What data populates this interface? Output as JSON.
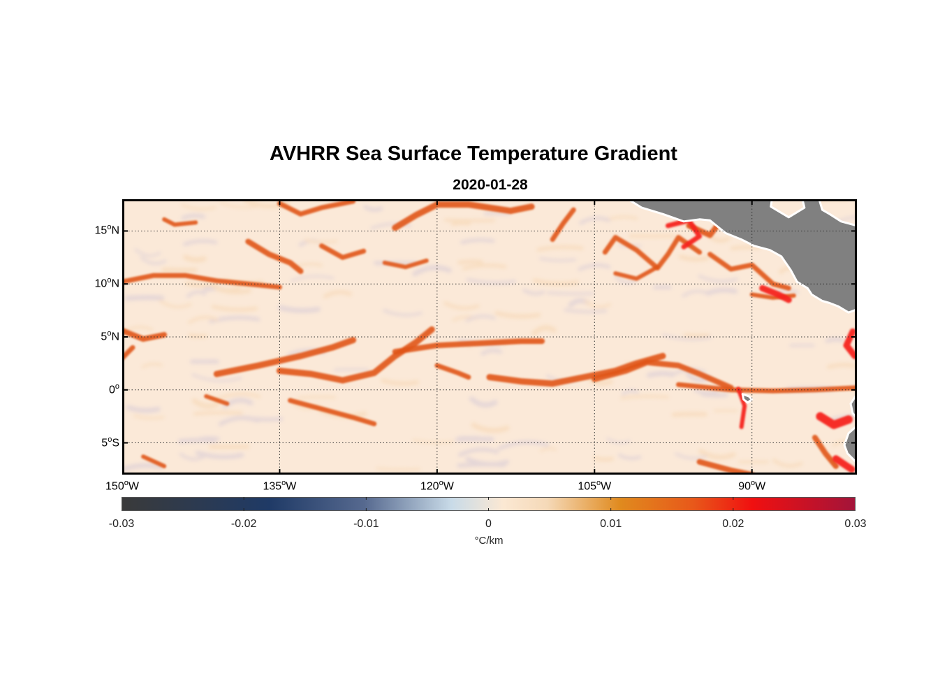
{
  "figure": {
    "title": "AVHRR Sea Surface Temperature Gradient",
    "subtitle": "2020-01-28"
  },
  "map": {
    "lon_range": [
      -150,
      -80
    ],
    "lat_range": [
      -8,
      18
    ],
    "land_color": "#808080",
    "grid_style": "dotted",
    "lat_ticks": [
      {
        "value": 15,
        "label": "15",
        "hemi": "N"
      },
      {
        "value": 10,
        "label": "10",
        "hemi": "N"
      },
      {
        "value": 5,
        "label": "5",
        "hemi": "N"
      },
      {
        "value": 0,
        "label": "0",
        "hemi": ""
      },
      {
        "value": -5,
        "label": "5",
        "hemi": "S"
      }
    ],
    "lon_ticks": [
      {
        "value": -150,
        "label": "150",
        "hemi": "W"
      },
      {
        "value": -135,
        "label": "135",
        "hemi": "W"
      },
      {
        "value": -120,
        "label": "120",
        "hemi": "W"
      },
      {
        "value": -105,
        "label": "105",
        "hemi": "W"
      },
      {
        "value": -90,
        "label": "90",
        "hemi": "W"
      }
    ],
    "degree_symbol": "o"
  },
  "colorbar": {
    "range": [
      -0.03,
      0.03
    ],
    "ticks": [
      "-0.03",
      "-0.02",
      "-0.01",
      "0",
      "0.01",
      "0.02",
      "0.03"
    ],
    "unit": "°C/km",
    "colors": {
      "min": "#3a3a3a",
      "low": "#1f3a66",
      "mid_low": "#c9dbe8",
      "zero": "#fbe8d3",
      "mid_high": "#e08a1e",
      "high": "#f01010",
      "max": "#a3143a"
    }
  },
  "features": {
    "ocean_background": "#fbe9d8",
    "front_color": "#e0541a",
    "strong_front_color": "#f5221b"
  }
}
